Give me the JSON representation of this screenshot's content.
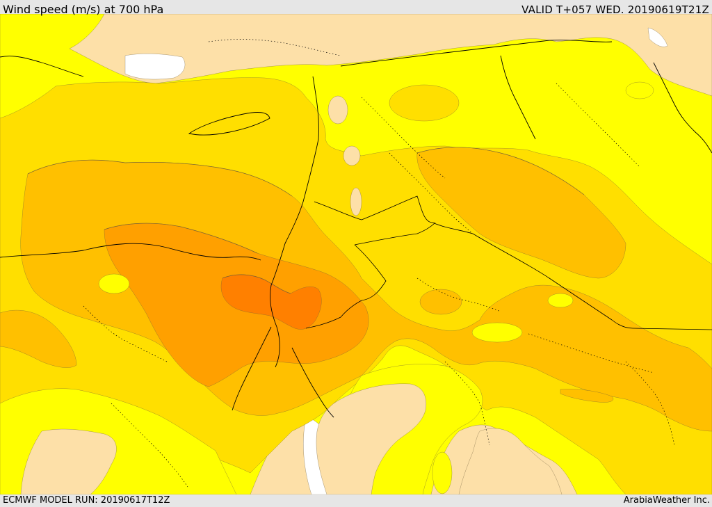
{
  "header": {
    "title": "Wind speed (m/s) at 700 hPa",
    "valid": "VALID T+057 WED. 20190619T21Z"
  },
  "footer": {
    "model_run": "ECMWF MODEL RUN: 20190617T12Z",
    "credit": "ArabiaWeather Inc."
  },
  "colors": {
    "land_light": "#fde0a8",
    "yellow": "#ffff00",
    "gold": "#ffdf00",
    "amber": "#ffc000",
    "orange": "#ffa000",
    "dark_orange": "#ff8000",
    "water": "#ffffff",
    "background": "#e6e6e6"
  }
}
